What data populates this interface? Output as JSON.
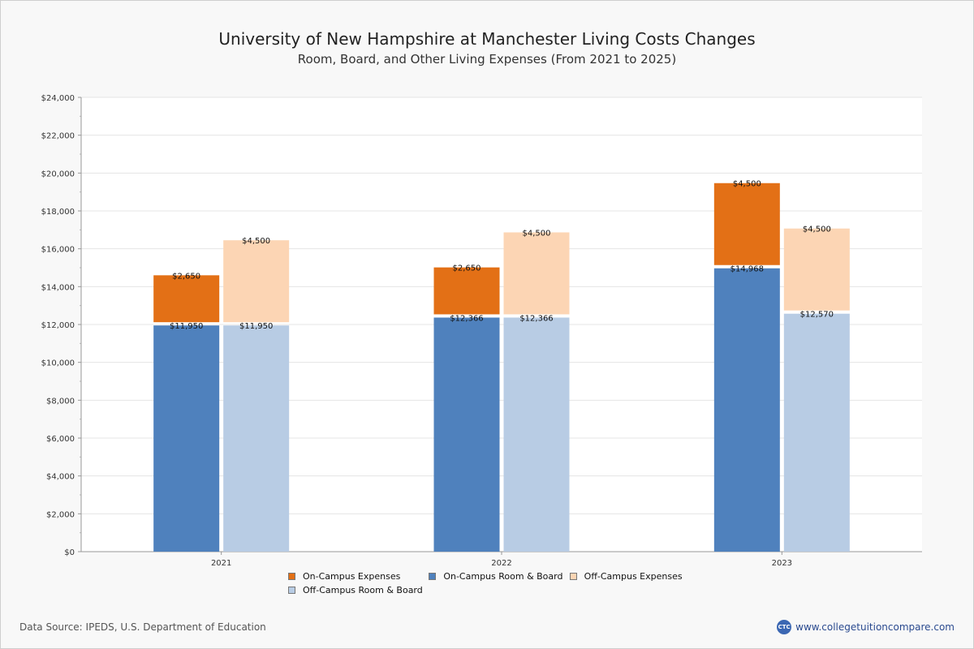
{
  "header": {
    "title": "University of New Hampshire at Manchester Living Costs Changes",
    "subtitle": "Room, Board, and Other Living Expenses (From 2021 to 2025)"
  },
  "colors": {
    "on_campus_expenses": "#e37016",
    "on_campus_room_board": "#4f81bd",
    "off_campus_expenses": "#fcd5b4",
    "off_campus_room_board": "#b8cce4"
  },
  "chart_data": {
    "type": "bar",
    "stacked": true,
    "categories": [
      "2021",
      "2022",
      "2023"
    ],
    "y_ticks": [
      "$0",
      "$2,000",
      "$4,000",
      "$6,000",
      "$8,000",
      "$10,000",
      "$12,000",
      "$14,000",
      "$16,000",
      "$18,000",
      "$20,000",
      "$22,000",
      "$24,000"
    ],
    "ylim": [
      0,
      24000
    ],
    "series": [
      {
        "name": "On-Campus Room & Board",
        "stack": "on",
        "values": [
          11950,
          12366,
          14968
        ],
        "labels": [
          "$11,950",
          "$12,366",
          "$14,968"
        ]
      },
      {
        "name": "On-Campus Expenses",
        "stack": "on",
        "values": [
          2650,
          2650,
          4500
        ],
        "labels": [
          "$2,650",
          "$2,650",
          "$4,500"
        ]
      },
      {
        "name": "Off-Campus Room & Board",
        "stack": "off",
        "values": [
          11950,
          12366,
          12570
        ],
        "labels": [
          "$11,950",
          "$12,366",
          "$12,570"
        ]
      },
      {
        "name": "Off-Campus Expenses",
        "stack": "off",
        "values": [
          4500,
          4500,
          4500
        ],
        "labels": [
          "$4,500",
          "$4,500",
          "$4,500"
        ]
      }
    ]
  },
  "legend": {
    "on_campus_expenses": "On-Campus Expenses",
    "on_campus_room_board": "On-Campus Room & Board",
    "off_campus_expenses": "Off-Campus Expenses",
    "off_campus_room_board": "Off-Campus Room & Board"
  },
  "footer": {
    "source": "Data Source: IPEDS, U.S. Department of Education",
    "brand_icon": "CTC",
    "brand_url": "www.collegetuitioncompare.com"
  }
}
